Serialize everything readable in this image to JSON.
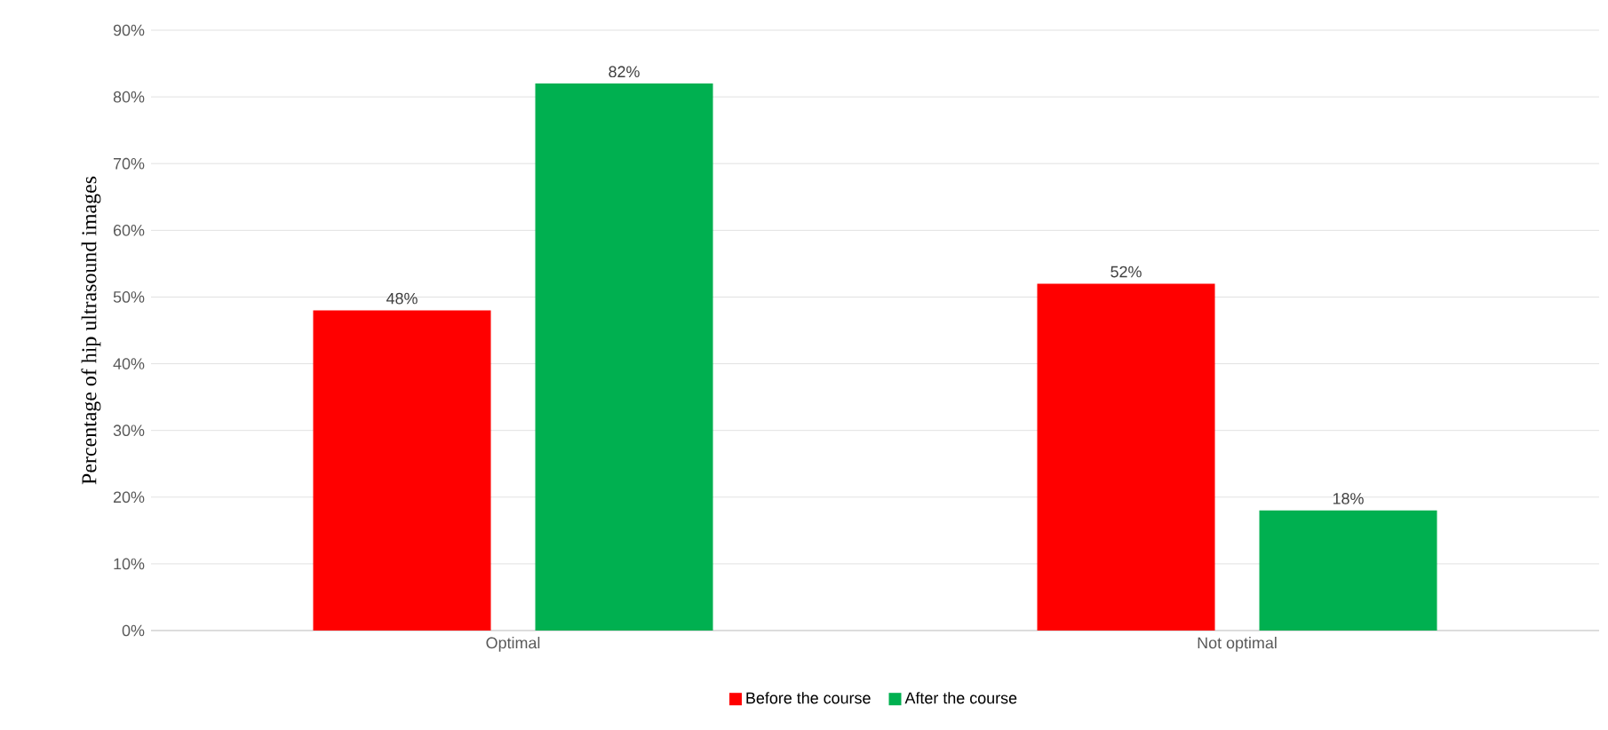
{
  "chart_data": {
    "type": "bar",
    "ylabel": "Percentage of hip ultrasound images",
    "categories": [
      "Optimal",
      "Not optimal"
    ],
    "series": [
      {
        "name": "Before the course",
        "color": "#ff0000",
        "values": [
          48,
          52
        ],
        "value_labels": [
          "48%",
          "52%"
        ]
      },
      {
        "name": "After the course",
        "color": "#00b050",
        "values": [
          82,
          18
        ],
        "value_labels": [
          "82%",
          "18%"
        ]
      }
    ],
    "ylim": [
      0,
      90
    ],
    "yticks": [
      {
        "value": 0,
        "label": "0%"
      },
      {
        "value": 10,
        "label": "10%"
      },
      {
        "value": 20,
        "label": "20%"
      },
      {
        "value": 30,
        "label": "30%"
      },
      {
        "value": 40,
        "label": "40%"
      },
      {
        "value": 50,
        "label": "50%"
      },
      {
        "value": 60,
        "label": "60%"
      },
      {
        "value": 70,
        "label": "70%"
      },
      {
        "value": 80,
        "label": "80%"
      },
      {
        "value": 90,
        "label": "90%"
      }
    ],
    "grid": "y",
    "legend": "bottom"
  }
}
